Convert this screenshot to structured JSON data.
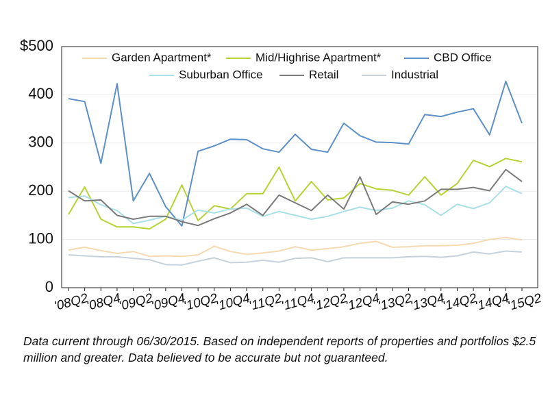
{
  "chart_data": {
    "type": "line",
    "categories": [
      "'08Q2",
      null,
      "'08Q4",
      null,
      "'09Q2",
      null,
      "'09Q4",
      null,
      "'10Q2",
      null,
      "'10Q4",
      null,
      "'11Q2",
      null,
      "'11Q4",
      null,
      "'12Q2",
      null,
      "'12Q4",
      null,
      "'13Q2",
      null,
      "'13Q4",
      null,
      "'14Q2",
      null,
      "'14Q4",
      null,
      "'15Q2"
    ],
    "series": [
      {
        "name": "Garden Apartment*",
        "color": "#f5d9b1",
        "values": [
          78,
          84,
          77,
          71,
          75,
          65,
          66,
          65,
          68,
          86,
          75,
          69,
          72,
          76,
          85,
          78,
          81,
          85,
          92,
          96,
          84,
          85,
          87,
          87,
          88,
          92,
          100,
          104,
          99
        ]
      },
      {
        "name": "Mid/Highrise Apartment*",
        "color": "#b5d334",
        "values": [
          152,
          209,
          142,
          126,
          126,
          122,
          142,
          213,
          139,
          170,
          163,
          195,
          195,
          250,
          180,
          220,
          182,
          186,
          216,
          205,
          202,
          192,
          230,
          192,
          216,
          264,
          251,
          268,
          261
        ]
      },
      {
        "name": "CBD Office",
        "color": "#5d8fc8",
        "values": [
          392,
          386,
          258,
          423,
          180,
          237,
          168,
          128,
          283,
          294,
          308,
          307,
          288,
          281,
          318,
          287,
          281,
          341,
          315,
          302,
          301,
          298,
          359,
          355,
          364,
          371,
          317,
          428,
          341
        ]
      },
      {
        "name": "Suburban Office",
        "color": "#a9dfe6",
        "values": [
          187,
          190,
          172,
          160,
          133,
          140,
          148,
          140,
          161,
          155,
          163,
          165,
          148,
          158,
          150,
          142,
          148,
          158,
          167,
          160,
          165,
          180,
          172,
          150,
          173,
          164,
          176,
          210,
          195
        ]
      },
      {
        "name": "Retail",
        "color": "#7a7a7a",
        "values": [
          201,
          180,
          182,
          150,
          142,
          148,
          148,
          137,
          129,
          143,
          155,
          173,
          150,
          192,
          176,
          160,
          192,
          163,
          230,
          152,
          178,
          173,
          180,
          204,
          204,
          208,
          201,
          245,
          220
        ]
      },
      {
        "name": "Industrial",
        "color": "#c7d1dc",
        "values": [
          68,
          66,
          64,
          64,
          61,
          58,
          48,
          47,
          55,
          62,
          52,
          53,
          57,
          53,
          61,
          62,
          54,
          62,
          62,
          62,
          62,
          64,
          65,
          63,
          66,
          74,
          70,
          76,
          74
        ]
      }
    ],
    "ylim": [
      0,
      500
    ],
    "yticks": [
      0,
      100,
      200,
      300,
      400,
      {
        "value": 500,
        "label": "$500"
      }
    ],
    "grid": true,
    "footnote": "Data current through 06/30/2015. Based on independent reports of properties and portfolios $2.5 million and greater. Data believed to be accurate but not guaranteed."
  }
}
